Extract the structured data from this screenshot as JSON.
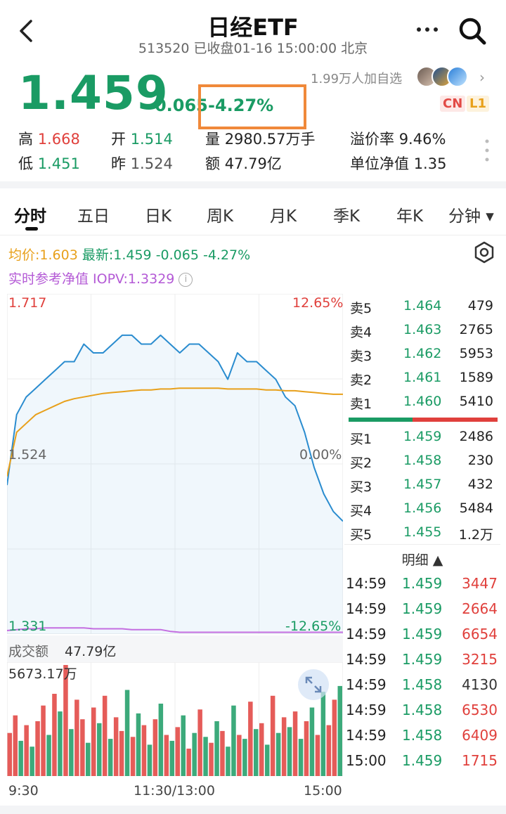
{
  "header": {
    "back_icon": "chevron-left-icon",
    "title": "日经ETF",
    "subtitle": "513520 已收盘01-16 15:00:00 北京",
    "more_icon": "more-horizontal-icon",
    "search_icon": "search-icon"
  },
  "quote": {
    "price": "1.459",
    "change": "-0.065",
    "change_pct": "-4.27%",
    "watchers": "1.99万人加自选",
    "tags": [
      "CN",
      "L1"
    ],
    "stats": {
      "high_label": "高",
      "high": "1.668",
      "open_label": "开",
      "open": "1.514",
      "volume_label": "量",
      "volume": "2980.57万手",
      "premium_label": "溢价率",
      "premium": "9.46%",
      "low_label": "低",
      "low": "1.451",
      "prev_label": "昨",
      "prev": "1.524",
      "amount_label": "额",
      "amount": "47.79亿",
      "nav_label": "单位净值",
      "nav": "1.35"
    }
  },
  "tabs": [
    "分时",
    "五日",
    "日K",
    "周K",
    "月K",
    "季K",
    "年K",
    "分钟 ▾"
  ],
  "active_tab": "分时",
  "chart_info": {
    "avg_label": "均价:1.603",
    "latest_label": "最新:1.459",
    "latest_change": "-0.065",
    "latest_pct": "-4.27%",
    "iopv": "实时参考净值 IOPV:1.3329",
    "info_icon": "info-icon",
    "settings_icon": "settings-icon"
  },
  "chart_data": {
    "type": "line",
    "y_left_ticks": [
      "1.717",
      "1.524",
      "1.331"
    ],
    "y_right_ticks": [
      "12.65%",
      "0.00%",
      "-12.65%"
    ],
    "ylim": [
      1.331,
      1.717
    ],
    "x_ticks": [
      "9:30",
      "11:30/13:00",
      "15:00"
    ],
    "series": [
      {
        "name": "最新",
        "color": "#2a8ccf",
        "values": [
          1.5,
          1.58,
          1.6,
          1.61,
          1.62,
          1.63,
          1.64,
          1.64,
          1.66,
          1.65,
          1.65,
          1.66,
          1.67,
          1.67,
          1.66,
          1.66,
          1.67,
          1.66,
          1.65,
          1.66,
          1.66,
          1.65,
          1.64,
          1.62,
          1.65,
          1.64,
          1.64,
          1.63,
          1.62,
          1.6,
          1.59,
          1.56,
          1.52,
          1.49,
          1.47,
          1.459
        ]
      },
      {
        "name": "均价",
        "color": "#e8a01b",
        "values": [
          1.51,
          1.56,
          1.57,
          1.58,
          1.585,
          1.59,
          1.595,
          1.598,
          1.6,
          1.602,
          1.604,
          1.605,
          1.606,
          1.607,
          1.608,
          1.608,
          1.609,
          1.609,
          1.61,
          1.61,
          1.61,
          1.61,
          1.61,
          1.609,
          1.609,
          1.609,
          1.609,
          1.608,
          1.608,
          1.607,
          1.607,
          1.606,
          1.605,
          1.604,
          1.603,
          1.603
        ]
      },
      {
        "name": "IOPV",
        "color": "#c46ee0",
        "values": [
          1.335,
          1.336,
          1.337,
          1.337,
          1.338,
          1.338,
          1.338,
          1.338,
          1.338,
          1.337,
          1.337,
          1.337,
          1.337,
          1.336,
          1.336,
          1.336,
          1.336,
          1.334,
          1.333,
          1.333,
          1.333,
          1.333,
          1.333,
          1.333,
          1.333,
          1.333,
          1.333,
          1.333,
          1.333,
          1.333,
          1.333,
          1.333,
          1.333,
          1.333,
          1.333,
          1.333
        ]
      }
    ],
    "volume": {
      "label": "成交额",
      "total": "47.79亿",
      "max_label": "5673.17万",
      "max": 5673.17,
      "bars": [
        {
          "v": 2200,
          "d": "r"
        },
        {
          "v": 3100,
          "d": "r"
        },
        {
          "v": 1800,
          "d": "g"
        },
        {
          "v": 2600,
          "d": "r"
        },
        {
          "v": 1500,
          "d": "g"
        },
        {
          "v": 2800,
          "d": "r"
        },
        {
          "v": 3600,
          "d": "r"
        },
        {
          "v": 2100,
          "d": "g"
        },
        {
          "v": 4200,
          "d": "r"
        },
        {
          "v": 3300,
          "d": "g"
        },
        {
          "v": 5673,
          "d": "r"
        },
        {
          "v": 2400,
          "d": "g"
        },
        {
          "v": 3900,
          "d": "r"
        },
        {
          "v": 2900,
          "d": "r"
        },
        {
          "v": 1700,
          "d": "g"
        },
        {
          "v": 3500,
          "d": "r"
        },
        {
          "v": 2700,
          "d": "g"
        },
        {
          "v": 4100,
          "d": "r"
        },
        {
          "v": 1900,
          "d": "g"
        },
        {
          "v": 3000,
          "d": "r"
        },
        {
          "v": 2300,
          "d": "r"
        },
        {
          "v": 4400,
          "d": "g"
        },
        {
          "v": 2000,
          "d": "r"
        },
        {
          "v": 3200,
          "d": "g"
        },
        {
          "v": 2600,
          "d": "r"
        },
        {
          "v": 1600,
          "d": "g"
        },
        {
          "v": 2900,
          "d": "r"
        },
        {
          "v": 3700,
          "d": "g"
        },
        {
          "v": 2100,
          "d": "r"
        },
        {
          "v": 1800,
          "d": "g"
        },
        {
          "v": 2500,
          "d": "r"
        },
        {
          "v": 3100,
          "d": "g"
        },
        {
          "v": 1400,
          "d": "r"
        },
        {
          "v": 2200,
          "d": "g"
        },
        {
          "v": 3400,
          "d": "r"
        },
        {
          "v": 2000,
          "d": "g"
        },
        {
          "v": 1700,
          "d": "r"
        },
        {
          "v": 2800,
          "d": "g"
        },
        {
          "v": 2300,
          "d": "r"
        },
        {
          "v": 1500,
          "d": "g"
        },
        {
          "v": 3600,
          "d": "g"
        },
        {
          "v": 2100,
          "d": "r"
        },
        {
          "v": 1900,
          "d": "g"
        },
        {
          "v": 3800,
          "d": "r"
        },
        {
          "v": 2400,
          "d": "g"
        },
        {
          "v": 2700,
          "d": "r"
        },
        {
          "v": 1600,
          "d": "g"
        },
        {
          "v": 4100,
          "d": "r"
        },
        {
          "v": 2200,
          "d": "g"
        },
        {
          "v": 3000,
          "d": "r"
        },
        {
          "v": 2500,
          "d": "g"
        },
        {
          "v": 3300,
          "d": "r"
        },
        {
          "v": 1900,
          "d": "g"
        },
        {
          "v": 2800,
          "d": "r"
        },
        {
          "v": 3500,
          "d": "g"
        },
        {
          "v": 2100,
          "d": "r"
        },
        {
          "v": 4300,
          "d": "g"
        },
        {
          "v": 2600,
          "d": "r"
        },
        {
          "v": 3900,
          "d": "r"
        },
        {
          "v": 4600,
          "d": "g"
        }
      ]
    }
  },
  "order_book": {
    "asks": [
      {
        "label": "卖5",
        "price": "1.464",
        "vol": "479"
      },
      {
        "label": "卖4",
        "price": "1.463",
        "vol": "2765"
      },
      {
        "label": "卖3",
        "price": "1.462",
        "vol": "5953"
      },
      {
        "label": "卖2",
        "price": "1.461",
        "vol": "1589"
      },
      {
        "label": "卖1",
        "price": "1.460",
        "vol": "5410"
      }
    ],
    "bids": [
      {
        "label": "买1",
        "price": "1.459",
        "vol": "2486"
      },
      {
        "label": "买2",
        "price": "1.458",
        "vol": "230"
      },
      {
        "label": "买3",
        "price": "1.457",
        "vol": "432"
      },
      {
        "label": "买4",
        "price": "1.456",
        "vol": "5484"
      },
      {
        "label": "买5",
        "price": "1.455",
        "vol": "1.2万"
      }
    ],
    "buy_ratio": 0.43,
    "detail_label": "明细 ▲",
    "details": [
      {
        "time": "14:59",
        "price": "1.459",
        "vol": "3447",
        "dir": "r"
      },
      {
        "time": "14:59",
        "price": "1.459",
        "vol": "2664",
        "dir": "r"
      },
      {
        "time": "14:59",
        "price": "1.459",
        "vol": "6654",
        "dir": "r"
      },
      {
        "time": "14:59",
        "price": "1.459",
        "vol": "3215",
        "dir": "r"
      },
      {
        "time": "14:59",
        "price": "1.458",
        "vol": "4130",
        "dir": "n"
      },
      {
        "time": "14:59",
        "price": "1.458",
        "vol": "6530",
        "dir": "r"
      },
      {
        "time": "14:59",
        "price": "1.458",
        "vol": "6409",
        "dir": "r"
      },
      {
        "time": "15:00",
        "price": "1.459",
        "vol": "1715",
        "dir": "r"
      }
    ]
  },
  "colors": {
    "up": "#e0403c",
    "down": "#1a9b64",
    "price_line": "#2a8ccf",
    "avg_line": "#e8a01b",
    "iopv_line": "#c46ee0"
  }
}
